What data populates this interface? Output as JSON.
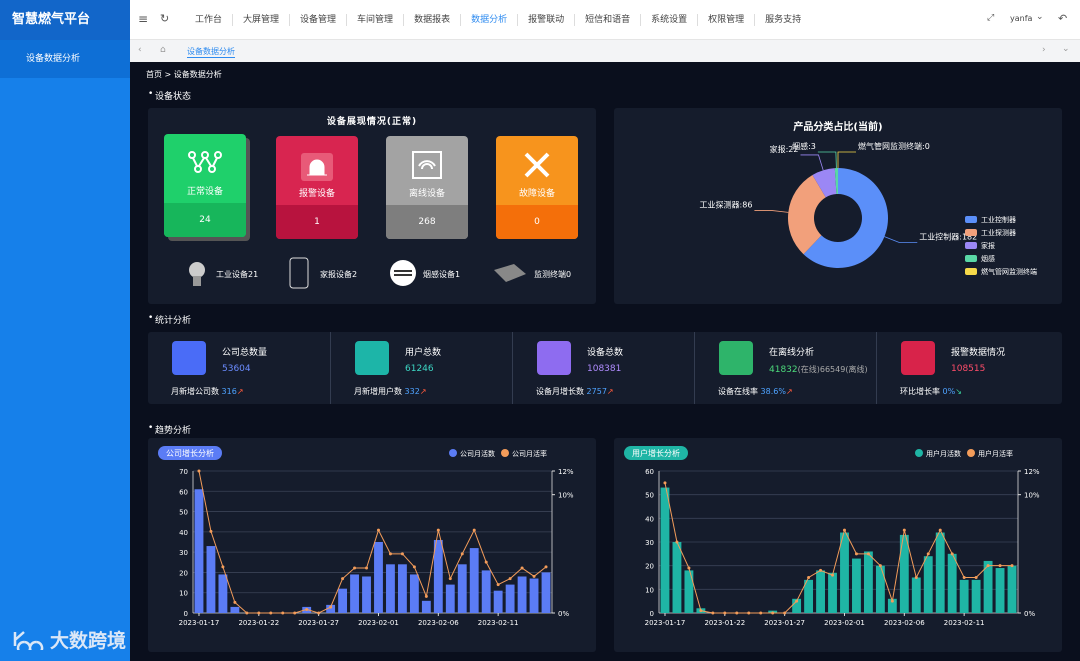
{
  "sidebar": {
    "brand": "智慧燃气平台",
    "menu": [
      "设备数据分析"
    ],
    "watermark": "大数跨境"
  },
  "topnav": {
    "menu": [
      "工作台",
      "大屏管理",
      "设备管理",
      "车间管理",
      "数据报表",
      "数据分析",
      "报警联动",
      "短信和语音",
      "系统设置",
      "权限管理",
      "服务支持"
    ],
    "user": "yanfa"
  },
  "tabs": [
    "设备数据分析"
  ],
  "breadcrumb": "首页 > 设备数据分析",
  "sections": [
    "设备状态",
    "统计分析",
    "趋势分析"
  ],
  "device_status": {
    "title": "设备展现情况(正常)",
    "cards": [
      {
        "label": "正常设备",
        "count": 24
      },
      {
        "label": "报警设备",
        "count": 1
      },
      {
        "label": "离线设备",
        "count": 268
      },
      {
        "label": "故障设备",
        "count": 0
      }
    ],
    "types": [
      "工业设备21",
      "家报设备2",
      "烟感设备1",
      "监测终端0"
    ]
  },
  "stats": [
    {
      "title": "公司总数量",
      "value": 53604,
      "sub_label": "月新增公司数",
      "sub_value": 316
    },
    {
      "title": "用户总数",
      "value": 61246,
      "sub_label": "月新增用户数",
      "sub_value": 332
    },
    {
      "title": "设备总数",
      "value": 108381,
      "sub_label": "设备月增长数",
      "sub_value": 2757
    },
    {
      "title": "在离线分析",
      "value": 41832,
      "value_suffix": "(在线)66549(离线)",
      "sub_label": "设备在线率",
      "sub_value": "38.6%"
    },
    {
      "title": "报警数据情况",
      "value": 108515,
      "sub_label": "环比增长率",
      "sub_value": "0%"
    }
  ],
  "chart_data": [
    {
      "type": "pie",
      "title": "产品分类占比(当前)",
      "categories": [
        "工业控制器",
        "工业探测器",
        "家报",
        "烟感",
        "燃气管网监测终端"
      ],
      "values": [
        182,
        86,
        22,
        3,
        0
      ],
      "value_labels": [
        "工业控制器:182",
        "工业探测器:86",
        "家报:22",
        "烟感:3",
        "燃气管网监测终端:0"
      ],
      "colors": [
        "#5b8ff9",
        "#f2a07b",
        "#9b87f5",
        "#5ad8a6",
        "#f6d94a"
      ],
      "legend": "right"
    },
    {
      "type": "bar",
      "title": "公司增长分析",
      "categories": [
        "2023-01-17",
        null,
        null,
        null,
        null,
        "2023-01-22",
        null,
        null,
        null,
        null,
        "2023-01-27",
        null,
        null,
        null,
        null,
        "2023-02-01",
        null,
        null,
        null,
        null,
        "2023-02-06",
        null,
        null,
        null,
        null,
        "2023-02-11",
        null,
        null,
        null,
        null
      ],
      "series": [
        {
          "name": "公司月活数",
          "color": "#5b7cf5",
          "type": "bar",
          "values": [
            61,
            33,
            19,
            3,
            0,
            0,
            0,
            0,
            0,
            3,
            0,
            4,
            12,
            19,
            18,
            35,
            24,
            24,
            19,
            6,
            36,
            14,
            24,
            32,
            21,
            11,
            14,
            18,
            17,
            20
          ]
        },
        {
          "name": "公司月活率",
          "color": "#f39c5a",
          "type": "line",
          "axis": "y2",
          "values": [
            12,
            6.9,
            3.9,
            0.9,
            0,
            0,
            0,
            0,
            0,
            0.3,
            0,
            0.5,
            2.9,
            3.8,
            3.8,
            7.0,
            5.0,
            5.0,
            3.9,
            1.4,
            7.0,
            2.9,
            5.0,
            7.0,
            4.3,
            2.4,
            2.9,
            3.8,
            3.1,
            3.9
          ]
        }
      ],
      "ylim": [
        0,
        70
      ],
      "yticks": [
        0,
        10,
        20,
        30,
        40,
        50,
        60,
        70
      ],
      "y2lim": [
        0,
        12
      ],
      "y2ticks": [
        {
          "value": 0,
          "label": "0%"
        },
        {
          "value": 10,
          "label": "10%"
        },
        {
          "value": 12,
          "label": "12%"
        }
      ],
      "grid": true
    },
    {
      "type": "bar",
      "title": "用户增长分析",
      "categories": [
        "2023-01-17",
        null,
        null,
        null,
        null,
        "2023-01-22",
        null,
        null,
        null,
        null,
        "2023-01-27",
        null,
        null,
        null,
        null,
        "2023-02-01",
        null,
        null,
        null,
        null,
        "2023-02-06",
        null,
        null,
        null,
        null,
        "2023-02-11",
        null,
        null,
        null,
        null
      ],
      "series": [
        {
          "name": "用户月活数",
          "color": "#1fb5a5",
          "type": "bar",
          "values": [
            53,
            30,
            18,
            2,
            0,
            0,
            0,
            0,
            0,
            1,
            0,
            6,
            14,
            18,
            17,
            34,
            23,
            26,
            20,
            6,
            33,
            15,
            24,
            34,
            25,
            14,
            14,
            22,
            19,
            20
          ]
        },
        {
          "name": "用户月活率",
          "color": "#f39c5a",
          "type": "line",
          "axis": "y2",
          "values": [
            11.0,
            6.0,
            3.8,
            0.2,
            0,
            0,
            0,
            0,
            0,
            0,
            0,
            1.0,
            3.0,
            3.6,
            3.2,
            7.0,
            5.0,
            5.0,
            4.0,
            1.0,
            7.0,
            3.0,
            5.0,
            7.0,
            5.0,
            3.0,
            3.0,
            4.0,
            4.0,
            4.0
          ]
        }
      ],
      "ylim": [
        0,
        60
      ],
      "yticks": [
        0,
        10,
        20,
        30,
        40,
        50,
        60
      ],
      "y2lim": [
        0,
        12
      ],
      "y2ticks": [
        {
          "value": 0,
          "label": "0%"
        },
        {
          "value": 10,
          "label": "10%"
        },
        {
          "value": 12,
          "label": "12%"
        }
      ],
      "grid": true
    }
  ]
}
